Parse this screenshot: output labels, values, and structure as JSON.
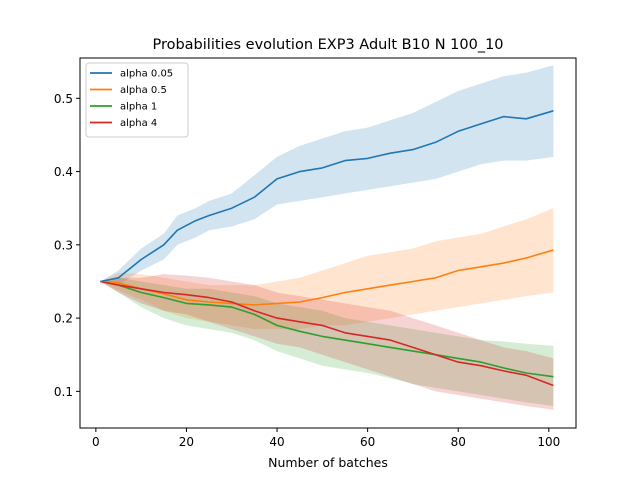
{
  "chart_data": {
    "type": "line",
    "title": "Probabilities evolution EXP3 Adult B10 N 100_10",
    "xlabel": "Number of batches",
    "ylabel": "",
    "xlim": [
      -3.5,
      106
    ],
    "ylim": [
      0.05,
      0.555
    ],
    "xticks": [
      0,
      20,
      40,
      60,
      80,
      100
    ],
    "yticks": [
      0.1,
      0.2,
      0.3,
      0.4,
      0.5
    ],
    "grid": false,
    "legend_position": "top-left",
    "series": [
      {
        "name": "alpha 0.05",
        "color": "#1f77b4",
        "points": [
          [
            1,
            0.25
          ],
          [
            5,
            0.255
          ],
          [
            10,
            0.28
          ],
          [
            15,
            0.3
          ],
          [
            18,
            0.32
          ],
          [
            22,
            0.333
          ],
          [
            25,
            0.34
          ],
          [
            30,
            0.35
          ],
          [
            35,
            0.365
          ],
          [
            40,
            0.39
          ],
          [
            45,
            0.4
          ],
          [
            50,
            0.405
          ],
          [
            55,
            0.415
          ],
          [
            60,
            0.418
          ],
          [
            65,
            0.425
          ],
          [
            70,
            0.43
          ],
          [
            75,
            0.44
          ],
          [
            80,
            0.455
          ],
          [
            85,
            0.465
          ],
          [
            90,
            0.475
          ],
          [
            95,
            0.472
          ],
          [
            101,
            0.483
          ]
        ],
        "band": [
          [
            1,
            0.25,
            0.25
          ],
          [
            5,
            0.245,
            0.265
          ],
          [
            10,
            0.265,
            0.295
          ],
          [
            15,
            0.28,
            0.315
          ],
          [
            18,
            0.3,
            0.34
          ],
          [
            22,
            0.31,
            0.35
          ],
          [
            25,
            0.32,
            0.36
          ],
          [
            30,
            0.325,
            0.37
          ],
          [
            35,
            0.335,
            0.395
          ],
          [
            40,
            0.355,
            0.42
          ],
          [
            45,
            0.36,
            0.435
          ],
          [
            50,
            0.365,
            0.445
          ],
          [
            55,
            0.37,
            0.455
          ],
          [
            60,
            0.375,
            0.46
          ],
          [
            65,
            0.38,
            0.47
          ],
          [
            70,
            0.385,
            0.48
          ],
          [
            75,
            0.39,
            0.495
          ],
          [
            80,
            0.4,
            0.51
          ],
          [
            85,
            0.41,
            0.52
          ],
          [
            90,
            0.415,
            0.53
          ],
          [
            95,
            0.415,
            0.535
          ],
          [
            101,
            0.42,
            0.545
          ]
        ]
      },
      {
        "name": "alpha 0.5",
        "color": "#ff7f0e",
        "points": [
          [
            1,
            0.25
          ],
          [
            5,
            0.248
          ],
          [
            10,
            0.24
          ],
          [
            15,
            0.233
          ],
          [
            20,
            0.225
          ],
          [
            25,
            0.222
          ],
          [
            30,
            0.22
          ],
          [
            35,
            0.218
          ],
          [
            40,
            0.22
          ],
          [
            45,
            0.222
          ],
          [
            50,
            0.228
          ],
          [
            55,
            0.235
          ],
          [
            60,
            0.24
          ],
          [
            65,
            0.245
          ],
          [
            70,
            0.25
          ],
          [
            75,
            0.255
          ],
          [
            80,
            0.265
          ],
          [
            85,
            0.27
          ],
          [
            90,
            0.275
          ],
          [
            95,
            0.282
          ],
          [
            101,
            0.293
          ]
        ],
        "band": [
          [
            1,
            0.25,
            0.25
          ],
          [
            5,
            0.238,
            0.262
          ],
          [
            10,
            0.225,
            0.26
          ],
          [
            15,
            0.21,
            0.255
          ],
          [
            20,
            0.2,
            0.25
          ],
          [
            25,
            0.195,
            0.245
          ],
          [
            30,
            0.19,
            0.245
          ],
          [
            35,
            0.185,
            0.245
          ],
          [
            40,
            0.185,
            0.25
          ],
          [
            45,
            0.185,
            0.255
          ],
          [
            50,
            0.19,
            0.265
          ],
          [
            55,
            0.19,
            0.275
          ],
          [
            60,
            0.195,
            0.285
          ],
          [
            65,
            0.2,
            0.29
          ],
          [
            70,
            0.205,
            0.295
          ],
          [
            75,
            0.21,
            0.305
          ],
          [
            80,
            0.215,
            0.31
          ],
          [
            85,
            0.22,
            0.315
          ],
          [
            90,
            0.225,
            0.325
          ],
          [
            95,
            0.23,
            0.335
          ],
          [
            101,
            0.235,
            0.35
          ]
        ]
      },
      {
        "name": "alpha 1",
        "color": "#2ca02c",
        "points": [
          [
            1,
            0.25
          ],
          [
            5,
            0.245
          ],
          [
            10,
            0.235
          ],
          [
            15,
            0.228
          ],
          [
            20,
            0.22
          ],
          [
            25,
            0.218
          ],
          [
            30,
            0.215
          ],
          [
            35,
            0.205
          ],
          [
            40,
            0.19
          ],
          [
            45,
            0.182
          ],
          [
            50,
            0.175
          ],
          [
            55,
            0.17
          ],
          [
            60,
            0.165
          ],
          [
            65,
            0.16
          ],
          [
            70,
            0.155
          ],
          [
            75,
            0.15
          ],
          [
            80,
            0.145
          ],
          [
            85,
            0.14
          ],
          [
            90,
            0.132
          ],
          [
            95,
            0.125
          ],
          [
            101,
            0.12
          ]
        ],
        "band": [
          [
            1,
            0.25,
            0.25
          ],
          [
            5,
            0.235,
            0.255
          ],
          [
            10,
            0.215,
            0.25
          ],
          [
            15,
            0.2,
            0.245
          ],
          [
            20,
            0.19,
            0.24
          ],
          [
            25,
            0.185,
            0.24
          ],
          [
            30,
            0.18,
            0.235
          ],
          [
            35,
            0.17,
            0.23
          ],
          [
            40,
            0.155,
            0.22
          ],
          [
            45,
            0.145,
            0.215
          ],
          [
            50,
            0.135,
            0.21
          ],
          [
            55,
            0.13,
            0.2
          ],
          [
            60,
            0.125,
            0.195
          ],
          [
            65,
            0.118,
            0.19
          ],
          [
            70,
            0.11,
            0.185
          ],
          [
            75,
            0.105,
            0.18
          ],
          [
            80,
            0.1,
            0.175
          ],
          [
            85,
            0.095,
            0.17
          ],
          [
            90,
            0.09,
            0.168
          ],
          [
            95,
            0.085,
            0.165
          ],
          [
            101,
            0.08,
            0.162
          ]
        ]
      },
      {
        "name": "alpha 4",
        "color": "#d62728",
        "points": [
          [
            1,
            0.25
          ],
          [
            5,
            0.245
          ],
          [
            10,
            0.24
          ],
          [
            15,
            0.235
          ],
          [
            20,
            0.232
          ],
          [
            25,
            0.228
          ],
          [
            30,
            0.222
          ],
          [
            35,
            0.21
          ],
          [
            40,
            0.2
          ],
          [
            45,
            0.195
          ],
          [
            50,
            0.19
          ],
          [
            55,
            0.18
          ],
          [
            60,
            0.175
          ],
          [
            65,
            0.17
          ],
          [
            70,
            0.16
          ],
          [
            75,
            0.15
          ],
          [
            80,
            0.14
          ],
          [
            85,
            0.135
          ],
          [
            90,
            0.128
          ],
          [
            95,
            0.122
          ],
          [
            101,
            0.108
          ]
        ],
        "band": [
          [
            1,
            0.25,
            0.25
          ],
          [
            5,
            0.235,
            0.255
          ],
          [
            10,
            0.22,
            0.255
          ],
          [
            15,
            0.21,
            0.26
          ],
          [
            20,
            0.205,
            0.258
          ],
          [
            25,
            0.195,
            0.255
          ],
          [
            30,
            0.185,
            0.25
          ],
          [
            35,
            0.175,
            0.245
          ],
          [
            40,
            0.165,
            0.235
          ],
          [
            45,
            0.16,
            0.23
          ],
          [
            50,
            0.15,
            0.225
          ],
          [
            55,
            0.14,
            0.22
          ],
          [
            60,
            0.13,
            0.215
          ],
          [
            65,
            0.12,
            0.21
          ],
          [
            70,
            0.11,
            0.2
          ],
          [
            75,
            0.1,
            0.19
          ],
          [
            80,
            0.095,
            0.18
          ],
          [
            85,
            0.09,
            0.17
          ],
          [
            90,
            0.085,
            0.16
          ],
          [
            95,
            0.08,
            0.155
          ],
          [
            101,
            0.075,
            0.145
          ]
        ]
      }
    ]
  }
}
